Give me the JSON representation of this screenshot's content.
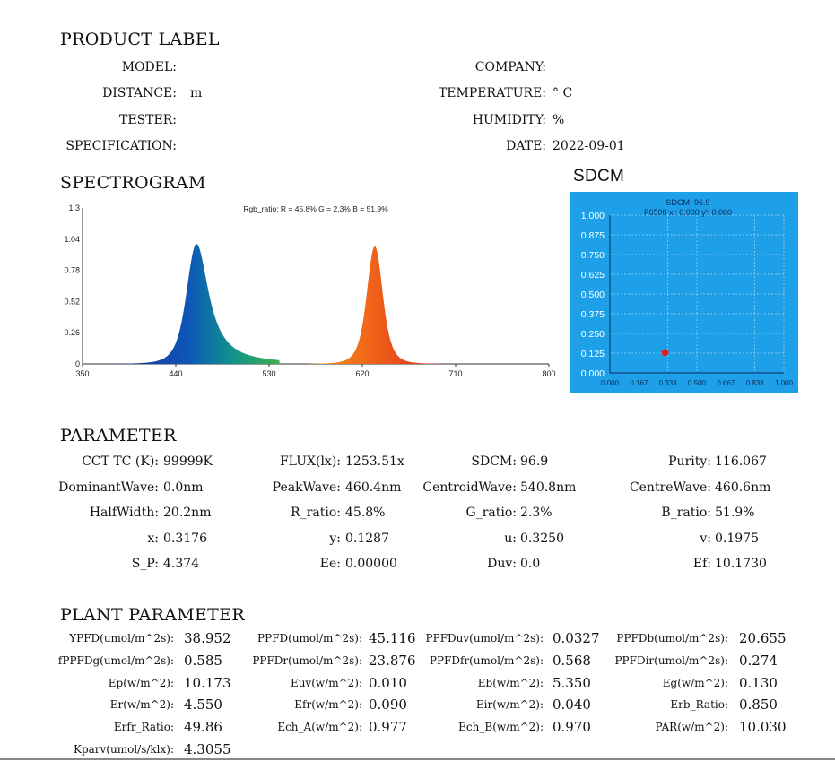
{
  "titles": {
    "product_label": "PRODUCT LABEL",
    "spectrogram": "SPECTROGRAM",
    "sdcm": "SDCM",
    "parameter": "PARAMETER",
    "plant_parameter": "PLANT PARAMETER"
  },
  "product": {
    "model_label": "MODEL:",
    "model_value": "",
    "company_label": "COMPANY:",
    "company_value": "",
    "distance_label": "DISTANCE:",
    "distance_value": "m",
    "temperature_label": "TEMPERATURE:",
    "temperature_value": "° C",
    "tester_label": "TESTER:",
    "tester_value": "",
    "humidity_label": "HUMIDITY:",
    "humidity_value": "%",
    "specification_label": "SPECIFICATION:",
    "specification_value": "",
    "date_label": "DATE:",
    "date_value": "2022-09-01"
  },
  "chart_data": [
    {
      "type": "area",
      "annotation": "Rgb_ratio: R = 45.8% G = 2.3% B = 51.9%",
      "xlim": [
        350,
        800
      ],
      "ylim": [
        0,
        1.3
      ],
      "x_ticks": [
        "350",
        "440",
        "530",
        "620",
        "710",
        "800"
      ],
      "y_ticks": [
        "0",
        "0.26",
        "0.52",
        "0.78",
        "1.04",
        "1.3"
      ],
      "peaks": [
        {
          "center": 460,
          "amplitude": 1.0,
          "half_width": 20
        },
        {
          "center": 632,
          "amplitude": 0.98,
          "half_width": 16
        }
      ]
    },
    {
      "type": "scatter",
      "annotation_line1": "SDCM:  96.9",
      "annotation_line2": "F6500  x': 0.000  y': 0.000",
      "xlim": [
        0,
        1
      ],
      "ylim": [
        0,
        1
      ],
      "x_ticks": [
        "0.000",
        "0.167",
        "0.333",
        "0.500",
        "0.667",
        "0.833",
        "1.000"
      ],
      "y_ticks": [
        "0.000",
        "0.125",
        "0.250",
        "0.375",
        "0.500",
        "0.625",
        "0.750",
        "0.875",
        "1.000"
      ],
      "points": [
        {
          "x": 0.3176,
          "y": 0.1287,
          "color": "#e02020"
        }
      ]
    }
  ],
  "parameters": [
    [
      {
        "label": "CCT TC (K):",
        "value": "99999K"
      },
      {
        "label": "FLUX(lx):",
        "value": "1253.51x"
      },
      {
        "label": "SDCM:",
        "value": "96.9"
      },
      {
        "label": "Purity:",
        "value": "116.067"
      }
    ],
    [
      {
        "label": "DominantWave:",
        "value": "0.0nm"
      },
      {
        "label": "PeakWave:",
        "value": "460.4nm"
      },
      {
        "label": "CentroidWave:",
        "value": "540.8nm"
      },
      {
        "label": "CentreWave:",
        "value": "460.6nm"
      }
    ],
    [
      {
        "label": "HalfWidth:",
        "value": "20.2nm"
      },
      {
        "label": "R_ratio:",
        "value": "45.8%"
      },
      {
        "label": "G_ratio:",
        "value": "2.3%"
      },
      {
        "label": "B_ratio:",
        "value": "51.9%"
      }
    ],
    [
      {
        "label": "x:",
        "value": "0.3176"
      },
      {
        "label": "y:",
        "value": "0.1287"
      },
      {
        "label": "u:",
        "value": "0.3250"
      },
      {
        "label": "v:",
        "value": "0.1975"
      }
    ],
    [
      {
        "label": "S_P:",
        "value": "4.374"
      },
      {
        "label": "Ee:",
        "value": "0.00000"
      },
      {
        "label": "Duv:",
        "value": "0.0"
      },
      {
        "label": "Ef:",
        "value": "10.1730"
      }
    ]
  ],
  "plant": [
    [
      {
        "label": "YPFD(umol/m^2s):",
        "value": "38.952"
      },
      {
        "label": "PPFD(umol/m^2s):",
        "value": "45.116"
      },
      {
        "label": "PPFDuv(umol/m^2s):",
        "value": "0.0327"
      },
      {
        "label": "PPFDb(umol/m^2s):",
        "value": "20.655"
      }
    ],
    [
      {
        "label": "fPPFDg(umol/m^2s):",
        "value": "0.585"
      },
      {
        "label": "PPFDr(umol/m^2s):",
        "value": "23.876"
      },
      {
        "label": "PPFDfr(umol/m^2s):",
        "value": "0.568"
      },
      {
        "label": "PPFDir(umol/m^2s):",
        "value": "0.274"
      }
    ],
    [
      {
        "label": "Ep(w/m^2):",
        "value": "10.173"
      },
      {
        "label": "Euv(w/m^2):",
        "value": "0.010"
      },
      {
        "label": "Eb(w/m^2):",
        "value": "5.350"
      },
      {
        "label": "Eg(w/m^2):",
        "value": "0.130"
      }
    ],
    [
      {
        "label": "Er(w/m^2):",
        "value": "4.550"
      },
      {
        "label": "Efr(w/m^2):",
        "value": "0.090"
      },
      {
        "label": "Eir(w/m^2):",
        "value": "0.040"
      },
      {
        "label": "Erb_Ratio:",
        "value": "0.850"
      }
    ],
    [
      {
        "label": "Erfr_Ratio:",
        "value": "49.86"
      },
      {
        "label": "Ech_A(w/m^2):",
        "value": "0.977"
      },
      {
        "label": "Ech_B(w/m^2):",
        "value": "0.970"
      },
      {
        "label": "PAR(w/m^2):",
        "value": "10.030"
      }
    ],
    [
      {
        "label": "Kparv(umol/s/klx):",
        "value": "4.3055"
      }
    ]
  ]
}
